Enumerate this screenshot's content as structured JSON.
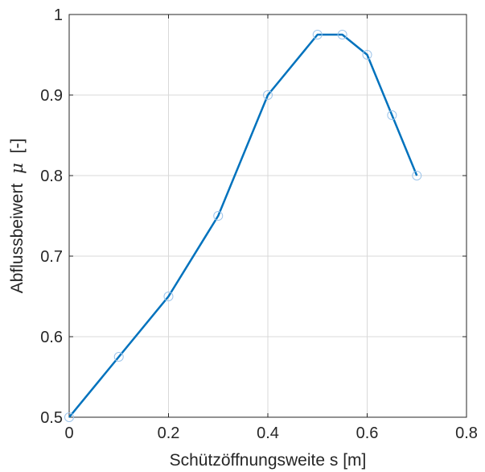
{
  "chart_data": {
    "type": "line",
    "title": "",
    "xlabel": "Schützöffnungsweite s [m]",
    "ylabel_text": "Abflussbeiwert",
    "ylabel_symbol": "μ",
    "ylabel_unit": "[-]",
    "xlim": [
      0,
      0.8
    ],
    "ylim": [
      0.5,
      1.0
    ],
    "xticks": [
      0,
      0.2,
      0.4,
      0.6,
      0.8
    ],
    "xtick_labels": [
      "0",
      "0.2",
      "0.4",
      "0.6",
      "0.8"
    ],
    "yticks": [
      0.5,
      0.6,
      0.7,
      0.8,
      0.9,
      1.0
    ],
    "ytick_labels": [
      "0.5",
      "0.6",
      "0.7",
      "0.8",
      "0.9",
      "1"
    ],
    "grid": true,
    "legend": "none",
    "colors": {
      "line": "#0072BD",
      "markers": "#9ec5ea"
    },
    "series": [
      {
        "style": "line",
        "x": [
          0,
          0.2,
          0.3,
          0.4,
          0.5,
          0.55,
          0.6,
          0.7
        ],
        "y": [
          0.5,
          0.65,
          0.75,
          0.9,
          0.975,
          0.975,
          0.95,
          0.8
        ]
      },
      {
        "style": "markers",
        "x": [
          0,
          0.1,
          0.2,
          0.3,
          0.4,
          0.5,
          0.55,
          0.6,
          0.65,
          0.7
        ],
        "y": [
          0.5,
          0.575,
          0.65,
          0.75,
          0.9,
          0.975,
          0.975,
          0.95,
          0.875,
          0.8
        ]
      }
    ]
  }
}
